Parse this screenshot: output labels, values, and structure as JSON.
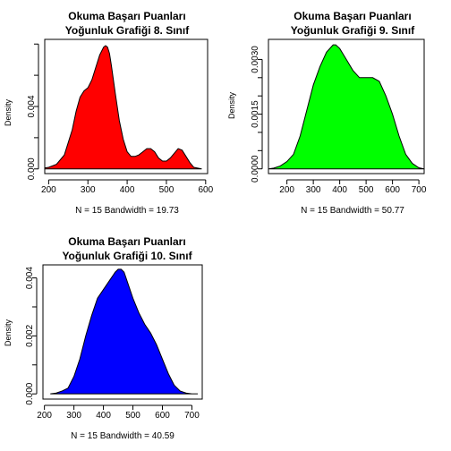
{
  "chart_data": [
    {
      "type": "area",
      "title_line1": "Okuma Başarı Puanları",
      "title_line2": "Yoğunluk Grafiği 8. Sınıf",
      "ylabel": "Density",
      "xlabel": "N = 15   Bandwidth = 19.73",
      "fill_color": "#ff0000",
      "xlim": [
        190,
        605
      ],
      "ylim": [
        -0.0003,
        0.0083
      ],
      "x_ticks": [
        200,
        300,
        400,
        500,
        600
      ],
      "y_ticks": [
        0.0,
        0.004
      ],
      "y_minor_ticks": [
        0.002,
        0.006,
        0.008
      ],
      "y_tick_labels": [
        "0.000",
        "0.004"
      ],
      "x": [
        140,
        180,
        200,
        220,
        240,
        260,
        270,
        280,
        290,
        300,
        310,
        320,
        330,
        340,
        345,
        350,
        355,
        360,
        370,
        380,
        390,
        400,
        410,
        420,
        430,
        440,
        450,
        460,
        470,
        480,
        490,
        500,
        510,
        520,
        530,
        540,
        550,
        560,
        570,
        590
      ],
      "y": [
        0.0,
        3e-05,
        0.0001,
        0.0003,
        0.0009,
        0.0025,
        0.0037,
        0.0046,
        0.005,
        0.0052,
        0.0057,
        0.0065,
        0.0073,
        0.0078,
        0.0079,
        0.0078,
        0.0074,
        0.0066,
        0.0048,
        0.0031,
        0.0019,
        0.0011,
        0.0008,
        0.0008,
        0.0009,
        0.0011,
        0.0013,
        0.0013,
        0.0011,
        0.0007,
        0.0005,
        0.0005,
        0.0007,
        0.001,
        0.0013,
        0.0012,
        0.0008,
        0.0004,
        0.0001,
        0.0
      ]
    },
    {
      "type": "area",
      "title_line1": "Okuma Başarı Puanları",
      "title_line2": "Yoğunluk Grafiği 9. Sınıf",
      "ylabel": "Density",
      "xlabel": "N = 15   Bandwidth = 50.77",
      "fill_color": "#00ff00",
      "xlim": [
        130,
        720
      ],
      "ylim": [
        -0.00013,
        0.00355
      ],
      "x_ticks": [
        200,
        300,
        400,
        500,
        600,
        700
      ],
      "y_ticks": [
        0.0,
        0.0015,
        0.003
      ],
      "y_minor_ticks": [
        0.0005,
        0.001,
        0.002,
        0.0025
      ],
      "y_tick_labels": [
        "0.0000",
        "0.0015",
        "0.0030"
      ],
      "x": [
        130,
        150,
        175,
        200,
        225,
        250,
        275,
        300,
        325,
        350,
        375,
        385,
        400,
        425,
        450,
        475,
        490,
        500,
        525,
        550,
        575,
        600,
        625,
        650,
        675,
        700,
        720
      ],
      "y": [
        0.0,
        2e-05,
        8e-05,
        0.0002,
        0.0004,
        0.0009,
        0.0016,
        0.0023,
        0.0028,
        0.0032,
        0.0034,
        0.0034,
        0.0033,
        0.003,
        0.0027,
        0.0025,
        0.0025,
        0.0025,
        0.0025,
        0.0024,
        0.002,
        0.0015,
        0.0009,
        0.0004,
        0.00015,
        3e-05,
        0.0
      ]
    },
    {
      "type": "area",
      "title_line1": "Okuma Başarı Puanları",
      "title_line2": "Yoğunluk Grafiği 10. Sınıf",
      "ylabel": "Density",
      "xlabel": "N = 15   Bandwidth = 40.59",
      "fill_color": "#0000ff",
      "xlim": [
        195,
        735
      ],
      "ylim": [
        -0.00018,
        0.00445
      ],
      "x_ticks": [
        200,
        300,
        400,
        500,
        600,
        700
      ],
      "y_ticks": [
        0.0,
        0.002,
        0.004
      ],
      "y_minor_ticks": [
        0.001,
        0.003
      ],
      "y_tick_labels": [
        "0.000",
        "0.002",
        "0.004"
      ],
      "x": [
        220,
        240,
        260,
        280,
        300,
        320,
        340,
        360,
        380,
        400,
        420,
        440,
        450,
        460,
        470,
        480,
        500,
        520,
        540,
        560,
        580,
        600,
        620,
        640,
        660,
        680,
        700,
        720
      ],
      "y": [
        0.0,
        3e-05,
        0.0001,
        0.0002,
        0.0006,
        0.0012,
        0.002,
        0.0027,
        0.0033,
        0.0036,
        0.0039,
        0.0042,
        0.0043,
        0.0043,
        0.0042,
        0.0039,
        0.0033,
        0.0028,
        0.0024,
        0.0021,
        0.0017,
        0.0012,
        0.0007,
        0.0003,
        0.0001,
        3e-05,
        0.0,
        0.0
      ]
    }
  ]
}
